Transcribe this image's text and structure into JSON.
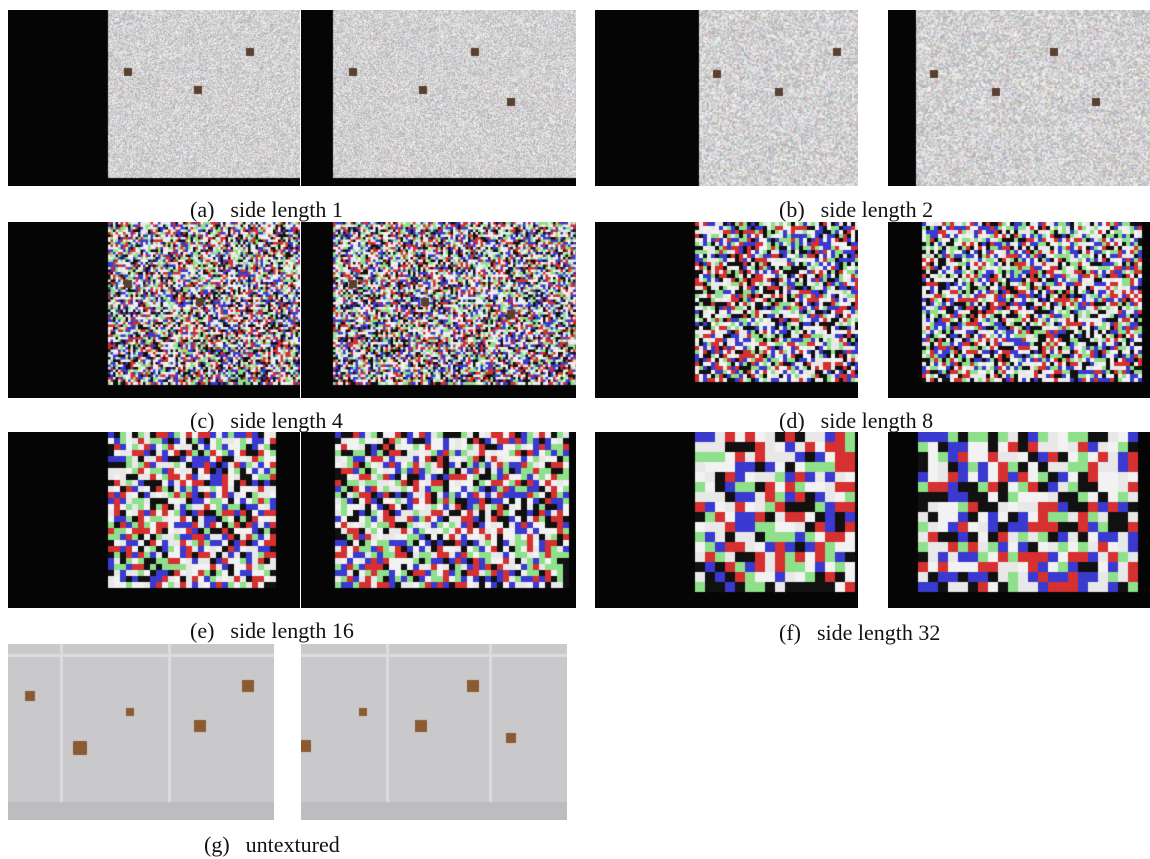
{
  "figure": {
    "panels": [
      {
        "id": "a",
        "label": "(a)",
        "caption": "side length 1",
        "texture": "noise",
        "block_side": 1
      },
      {
        "id": "b",
        "label": "(b)",
        "caption": "side length 2",
        "texture": "noise",
        "block_side": 2
      },
      {
        "id": "c",
        "label": "(c)",
        "caption": "side length 4",
        "texture": "noise",
        "block_side": 4
      },
      {
        "id": "d",
        "label": "(d)",
        "caption": "side length 8",
        "texture": "noise",
        "block_side": 8
      },
      {
        "id": "e",
        "label": "(e)",
        "caption": "side length 16",
        "texture": "noise",
        "block_side": 16
      },
      {
        "id": "f",
        "label": "(f)",
        "caption": "side length 32",
        "texture": "noise",
        "block_side": 32
      },
      {
        "id": "g",
        "label": "(g)",
        "caption": "untextured",
        "texture": "plain"
      }
    ],
    "colors": {
      "background": "#050505",
      "wall": "#c9c9cc",
      "marker": "#8a5a32",
      "texture_palette": [
        "#f2f2f2",
        "#e8e8e8",
        "#111111",
        "#d63030",
        "#3a3ad0",
        "#8fe08a"
      ]
    }
  }
}
